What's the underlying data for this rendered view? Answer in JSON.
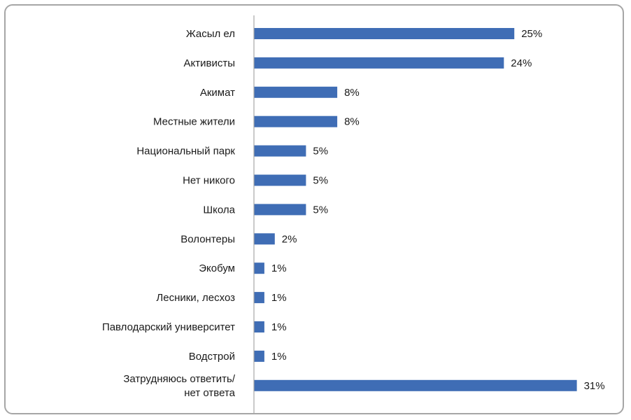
{
  "chart_data": {
    "type": "bar",
    "orientation": "horizontal",
    "categories": [
      [
        "Жасыл ел"
      ],
      [
        "Активисты"
      ],
      [
        "Акимат"
      ],
      [
        "Местные жители"
      ],
      [
        "Национальный парк"
      ],
      [
        "Нет никого"
      ],
      [
        "Школа"
      ],
      [
        "Волонтеры"
      ],
      [
        "Экобум"
      ],
      [
        "Лесники, лесхоз"
      ],
      [
        "Павлодарский университет"
      ],
      [
        "Водстрой"
      ],
      [
        "Затрудняюсь ответить/",
        "нет ответа"
      ]
    ],
    "values": [
      25,
      24,
      8,
      8,
      5,
      5,
      5,
      2,
      1,
      1,
      1,
      1,
      31
    ],
    "value_labels": [
      "25%",
      "24%",
      "8%",
      "8%",
      "5%",
      "5%",
      "5%",
      "2%",
      "1%",
      "1%",
      "1%",
      "1%",
      "31%"
    ],
    "unit": "%",
    "bar_color": "#3f6db5",
    "axis_color": "#a6a6a6",
    "xlim": [
      0,
      31.5
    ],
    "grid": false,
    "legend": "none",
    "title": "",
    "xlabel": "",
    "ylabel": ""
  }
}
